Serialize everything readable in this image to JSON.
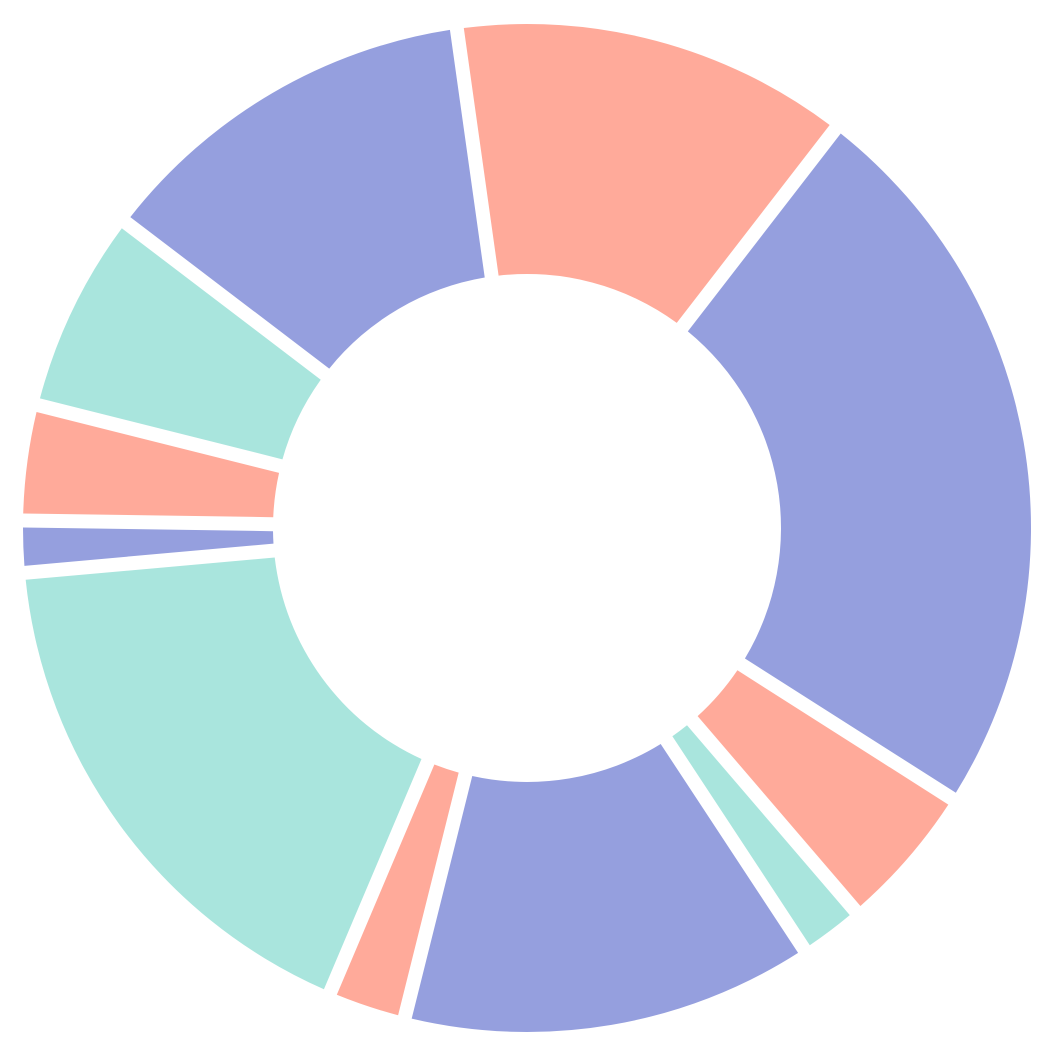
{
  "chart_data": {
    "type": "pie",
    "title": "",
    "donut": true,
    "colors": {
      "blue": "#959FDE",
      "salmon": "#FFAA9A",
      "teal": "#A9E5DD"
    },
    "slices": [
      {
        "value": 13.8,
        "color": "#FFAA9A"
      },
      {
        "value": 25.6,
        "color": "#959FDE"
      },
      {
        "value": 5.1,
        "color": "#FFAA9A"
      },
      {
        "value": 2.2,
        "color": "#A9E5DD"
      },
      {
        "value": 14.3,
        "color": "#959FDE"
      },
      {
        "value": 2.7,
        "color": "#FFAA9A"
      },
      {
        "value": 18.7,
        "color": "#A9E5DD"
      },
      {
        "value": 1.8,
        "color": "#959FDE"
      },
      {
        "value": 4.0,
        "color": "#FFAA9A"
      },
      {
        "value": 7.0,
        "color": "#A9E5DD"
      },
      {
        "value": 13.5,
        "color": "#959FDE"
      }
    ]
  }
}
